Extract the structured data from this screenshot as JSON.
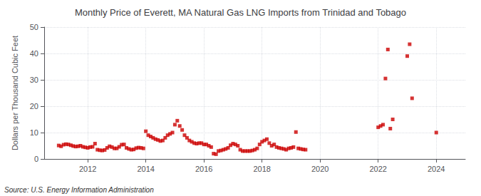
{
  "chart_data": {
    "type": "scatter",
    "title": "Monthly Price of Everett, MA Natural Gas LNG Imports from Trinidad and Tobago",
    "ylabel": "Dollars per Thousand Cubic Feet",
    "source": "Source: U.S. Energy Information Administration",
    "color": "#cc0000",
    "marker": "square",
    "grid": true,
    "xlim": [
      2010.5,
      2025.0
    ],
    "xticks": [
      2012,
      2014,
      2016,
      2018,
      2020,
      2022,
      2024
    ],
    "ylim": [
      0,
      50
    ],
    "yticks": [
      0,
      10,
      20,
      30,
      40,
      50
    ],
    "x": [
      2011.0,
      2011.083,
      2011.167,
      2011.25,
      2011.333,
      2011.417,
      2011.5,
      2011.583,
      2011.667,
      2011.75,
      2011.833,
      2011.917,
      2012.0,
      2012.083,
      2012.167,
      2012.25,
      2012.333,
      2012.417,
      2012.5,
      2012.583,
      2012.667,
      2012.75,
      2012.833,
      2012.917,
      2013.0,
      2013.083,
      2013.167,
      2013.25,
      2013.333,
      2013.417,
      2013.5,
      2013.583,
      2013.667,
      2013.75,
      2013.833,
      2013.917,
      2014.0,
      2014.083,
      2014.167,
      2014.25,
      2014.333,
      2014.417,
      2014.5,
      2014.583,
      2014.667,
      2014.75,
      2014.833,
      2014.917,
      2015.0,
      2015.083,
      2015.167,
      2015.25,
      2015.333,
      2015.417,
      2015.5,
      2015.583,
      2015.667,
      2015.75,
      2015.833,
      2015.917,
      2016.0,
      2016.083,
      2016.167,
      2016.25,
      2016.333,
      2016.417,
      2016.5,
      2016.583,
      2016.667,
      2016.75,
      2016.833,
      2016.917,
      2017.0,
      2017.083,
      2017.167,
      2017.25,
      2017.333,
      2017.417,
      2017.5,
      2017.583,
      2017.667,
      2017.75,
      2017.833,
      2017.917,
      2018.0,
      2018.083,
      2018.167,
      2018.25,
      2018.333,
      2018.417,
      2018.5,
      2018.583,
      2018.667,
      2018.75,
      2018.833,
      2018.917,
      2019.0,
      2019.083,
      2019.167,
      2019.25,
      2019.333,
      2019.417,
      2019.5,
      2022.0,
      2022.083,
      2022.167,
      2022.25,
      2022.333,
      2022.417,
      2022.5,
      2023.0,
      2023.083,
      2023.167,
      2024.0
    ],
    "values": [
      5.1,
      4.8,
      5.4,
      5.6,
      5.5,
      5.2,
      4.9,
      4.7,
      4.8,
      5.0,
      4.6,
      4.4,
      4.2,
      4.5,
      4.6,
      5.8,
      3.5,
      3.3,
      3.2,
      3.4,
      4.2,
      4.8,
      4.5,
      4.0,
      4.0,
      4.6,
      5.4,
      5.5,
      4.2,
      3.8,
      3.5,
      3.6,
      4.1,
      4.3,
      4.2,
      4.0,
      10.5,
      9.0,
      8.5,
      8.0,
      7.5,
      7.2,
      6.8,
      7.0,
      8.0,
      9.0,
      9.5,
      10.0,
      13.0,
      14.5,
      12.5,
      11.0,
      9.0,
      8.0,
      7.0,
      6.5,
      6.0,
      5.8,
      6.0,
      6.0,
      5.5,
      5.5,
      5.0,
      4.5,
      2.0,
      1.8,
      3.0,
      3.2,
      3.5,
      3.8,
      4.2,
      5.2,
      5.8,
      5.5,
      5.0,
      3.5,
      3.0,
      3.0,
      3.0,
      3.0,
      3.2,
      3.5,
      4.0,
      5.5,
      6.5,
      7.0,
      7.5,
      6.0,
      5.0,
      5.5,
      4.5,
      4.2,
      4.0,
      3.8,
      3.5,
      4.0,
      4.2,
      4.5,
      10.2,
      4.0,
      3.8,
      3.6,
      3.5,
      12.0,
      12.5,
      13.0,
      30.5,
      41.5,
      11.5,
      15.0,
      39.0,
      43.5,
      23.0,
      10.0
    ]
  }
}
